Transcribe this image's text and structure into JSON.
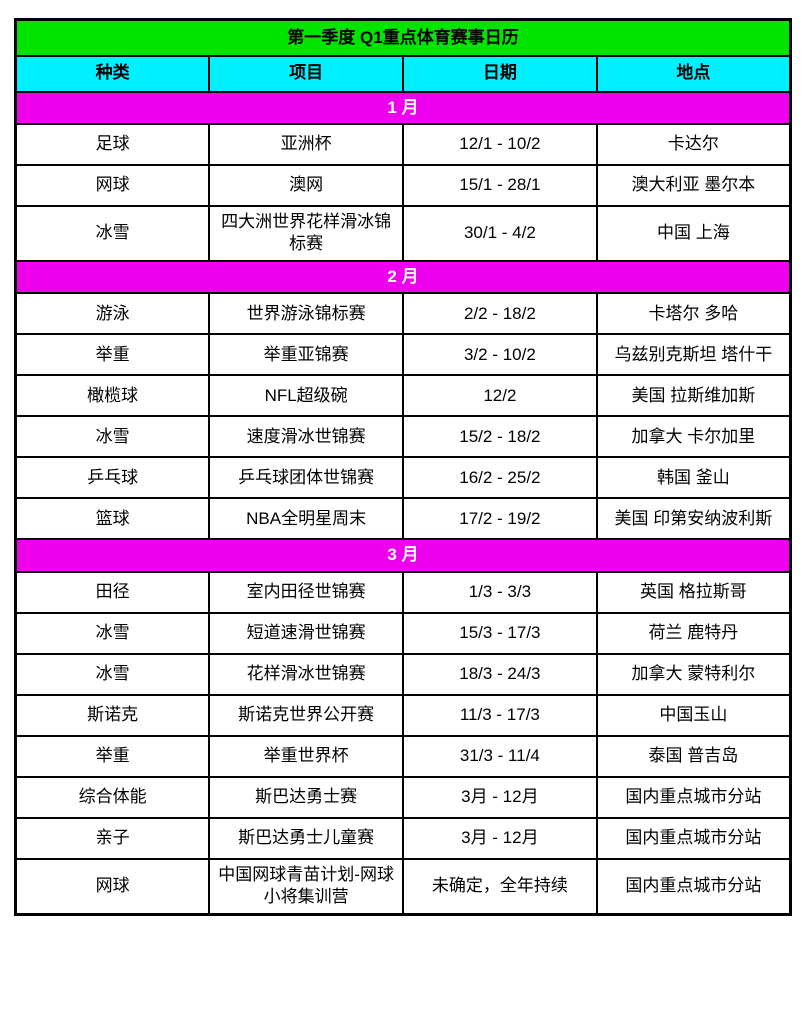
{
  "table": {
    "title": "第一季度 Q1重点体育赛事日历",
    "headers": [
      "种类",
      "项目",
      "日期",
      "地点"
    ],
    "column_keys": [
      "category",
      "event",
      "date",
      "location"
    ],
    "sections": [
      {
        "month": "1 月",
        "rows": [
          {
            "category": "足球",
            "event": "亚洲杯",
            "date": "12/1 - 10/2",
            "location": "卡达尔"
          },
          {
            "category": "网球",
            "event": "澳网",
            "date": "15/1 - 28/1",
            "location": "澳大利亚 墨尔本"
          },
          {
            "category": "冰雪",
            "event": "四大洲世界花样滑冰锦标赛",
            "date": "30/1 - 4/2",
            "location": "中国 上海"
          }
        ]
      },
      {
        "month": "2 月",
        "rows": [
          {
            "category": "游泳",
            "event": "世界游泳锦标赛",
            "date": "2/2 - 18/2",
            "location": "卡塔尔 多哈"
          },
          {
            "category": "举重",
            "event": "举重亚锦赛",
            "date": "3/2 - 10/2",
            "location": "乌兹别克斯坦 塔什干"
          },
          {
            "category": "橄榄球",
            "event": "NFL超级碗",
            "date": "12/2",
            "location": "美国 拉斯维加斯"
          },
          {
            "category": "冰雪",
            "event": "速度滑冰世锦赛",
            "date": "15/2 - 18/2",
            "location": "加拿大 卡尔加里"
          },
          {
            "category": "乒乓球",
            "event": "乒乓球团体世锦赛",
            "date": "16/2 - 25/2",
            "location": "韩国 釜山"
          },
          {
            "category": "篮球",
            "event": "NBA全明星周末",
            "date": "17/2 - 19/2",
            "location": "美国 印第安纳波利斯"
          }
        ]
      },
      {
        "month": "3 月",
        "rows": [
          {
            "category": "田径",
            "event": "室内田径世锦赛",
            "date": "1/3 - 3/3",
            "location": "英国 格拉斯哥"
          },
          {
            "category": "冰雪",
            "event": "短道速滑世锦赛",
            "date": "15/3 - 17/3",
            "location": "荷兰 鹿特丹"
          },
          {
            "category": "冰雪",
            "event": "花样滑冰世锦赛",
            "date": "18/3 - 24/3",
            "location": "加拿大 蒙特利尔"
          },
          {
            "category": "斯诺克",
            "event": "斯诺克世界公开赛",
            "date": "11/3 - 17/3",
            "location": "中国玉山"
          },
          {
            "category": "举重",
            "event": "举重世界杯",
            "date": "31/3 - 11/4",
            "location": "泰国 普吉岛"
          },
          {
            "category": "综合体能",
            "event": "斯巴达勇士赛",
            "date": "3月 - 12月",
            "location": "国内重点城市分站"
          },
          {
            "category": "亲子",
            "event": "斯巴达勇士儿童赛",
            "date": "3月 - 12月",
            "location": "国内重点城市分站"
          },
          {
            "category": "网球",
            "event": "中国网球青苗计划-网球小将集训营",
            "date": "未确定，全年持续",
            "location": "国内重点城市分站"
          }
        ]
      }
    ],
    "colors": {
      "title_bg": "#00e400",
      "header_bg": "#00f0ff",
      "month_bg": "#ee00ee",
      "month_text": "#ffffff",
      "border": "#000000",
      "row_bg": "#ffffff",
      "text": "#000000"
    }
  }
}
